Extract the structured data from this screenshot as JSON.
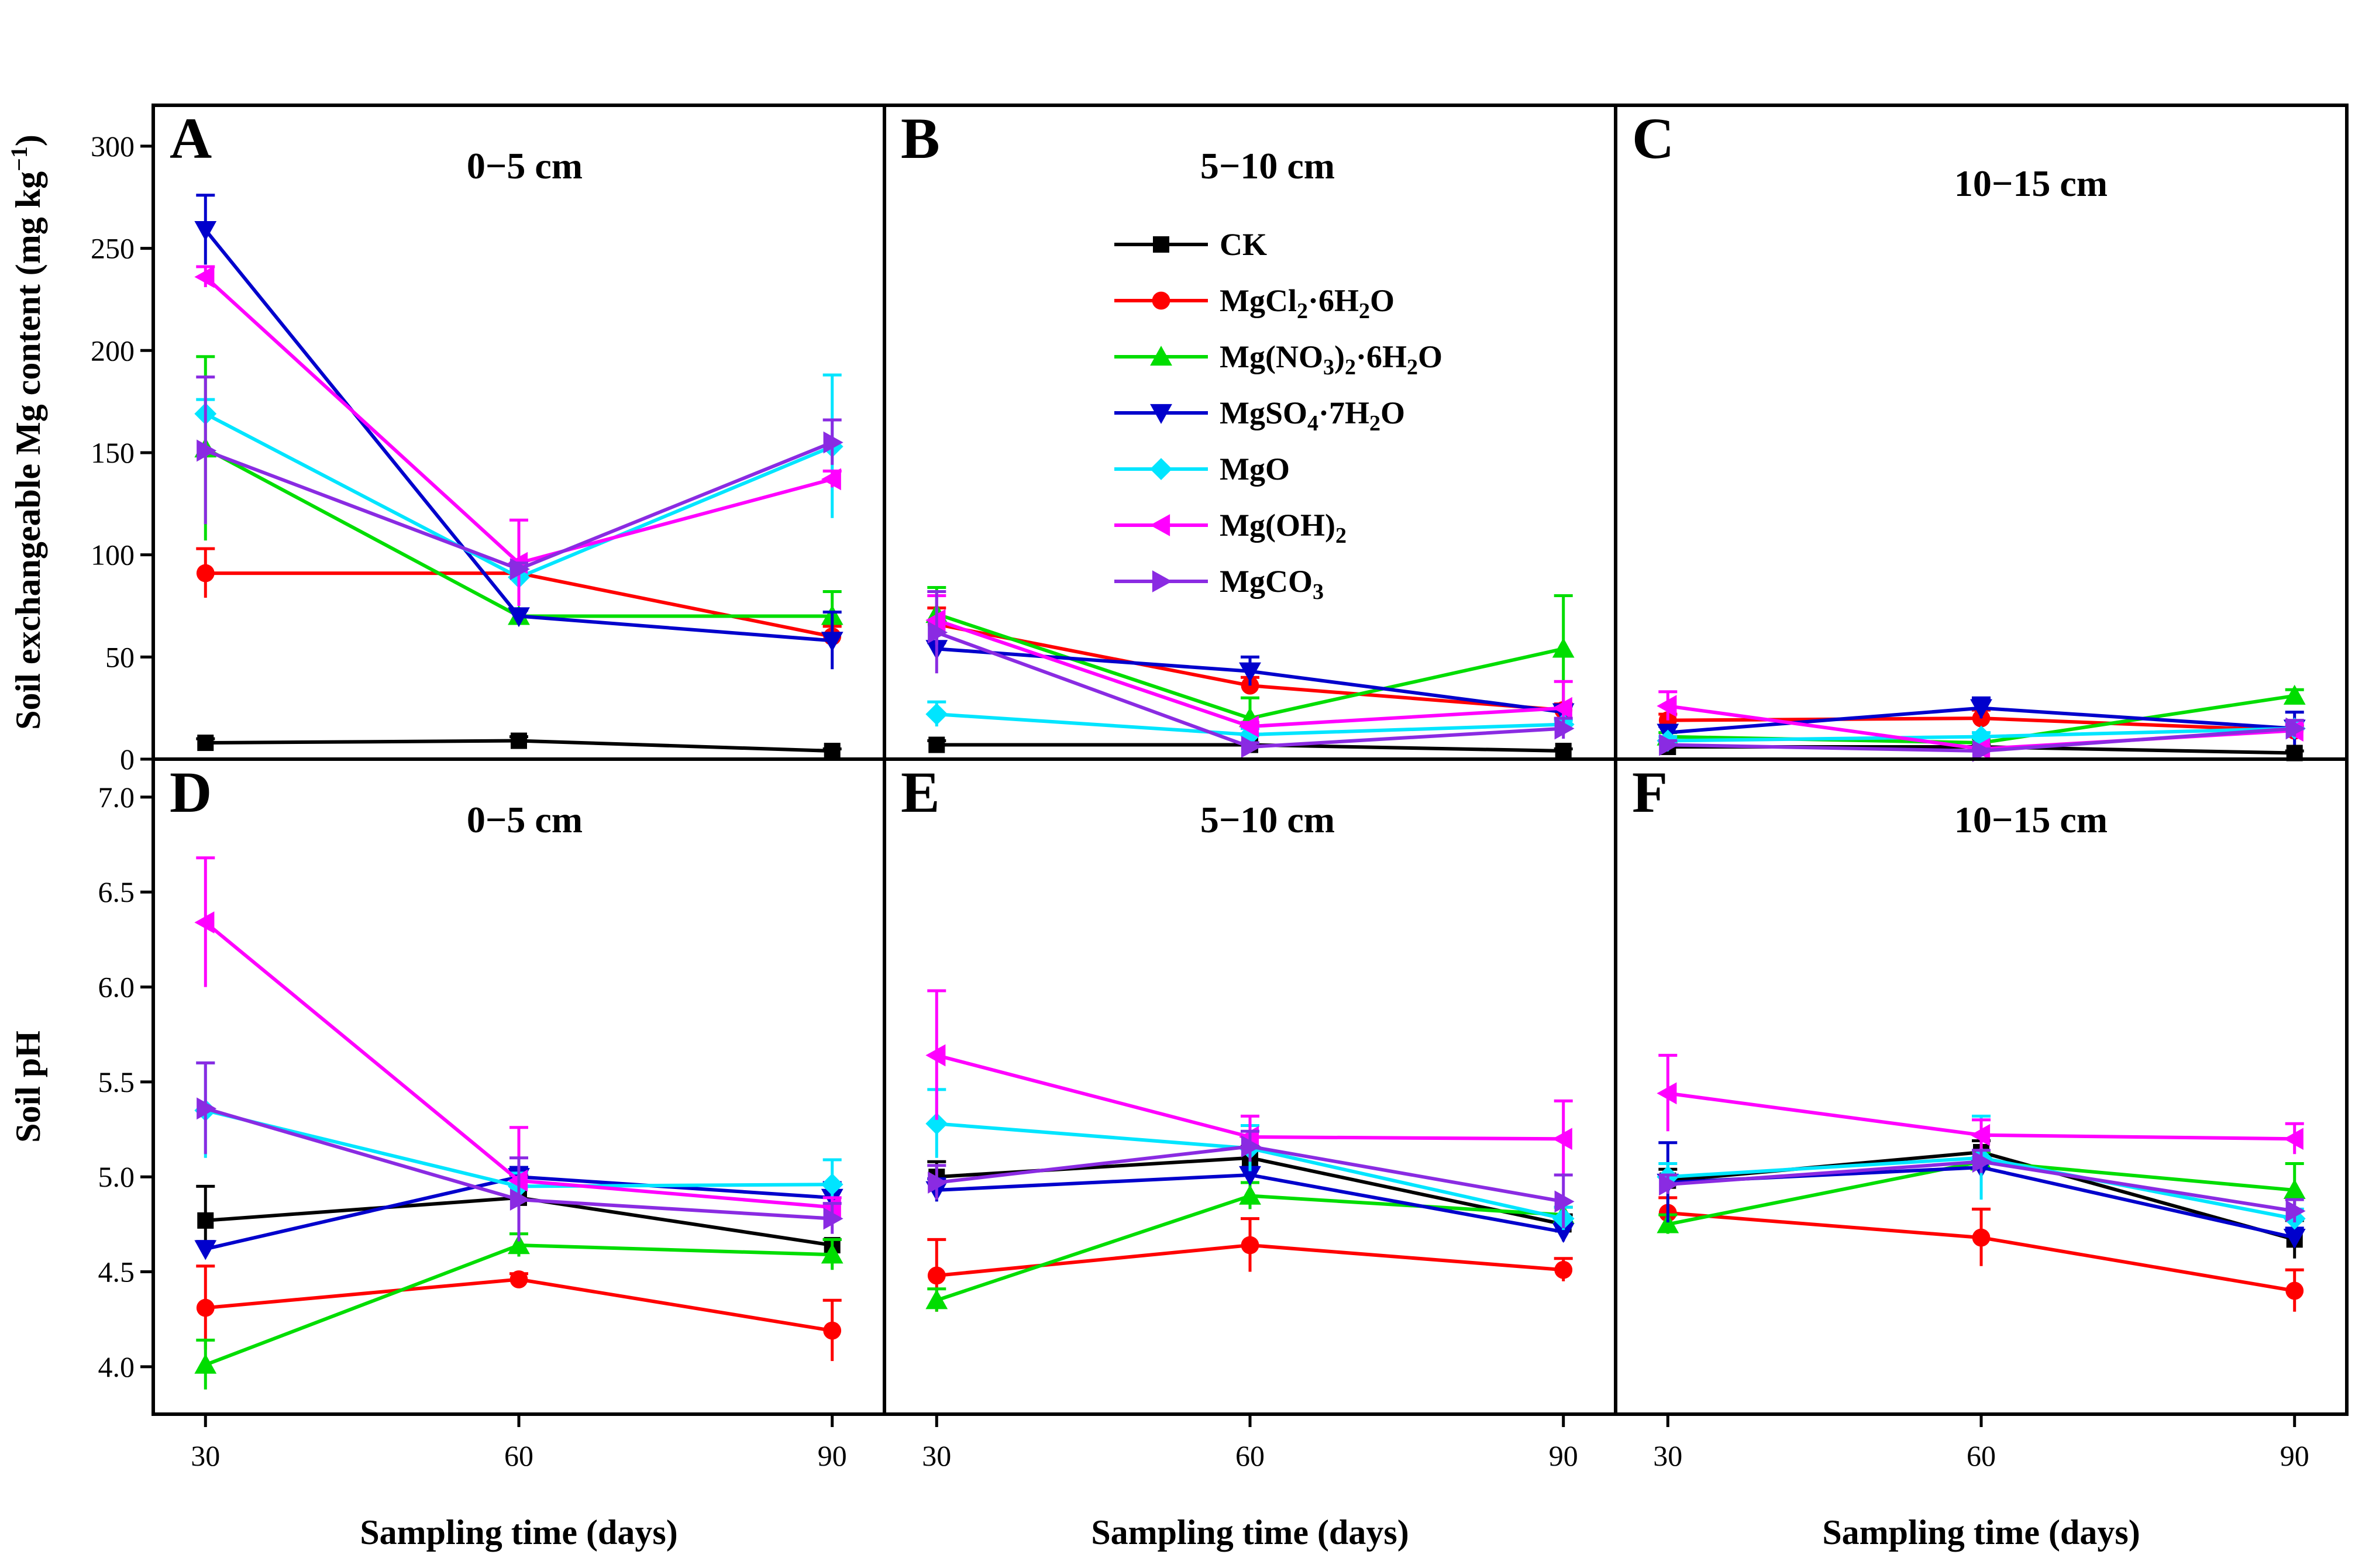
{
  "chart_data": {
    "type": "line",
    "x": [
      30,
      60,
      90
    ],
    "xlabel": "Sampling time (days)",
    "series_styles": [
      {
        "name": "CK",
        "color": "#000000",
        "marker": "square"
      },
      {
        "name": "MgCl2·6H2O",
        "color": "#ff0000",
        "marker": "circle"
      },
      {
        "name": "Mg(NO3)2·6H2O",
        "color": "#00dd00",
        "marker": "triangle-up"
      },
      {
        "name": "MgSO4·7H2O",
        "color": "#0000cc",
        "marker": "triangle-down"
      },
      {
        "name": "MgO",
        "color": "#00e5ff",
        "marker": "diamond"
      },
      {
        "name": "Mg(OH)2",
        "color": "#ff00ff",
        "marker": "triangle-left"
      },
      {
        "name": "MgCO3",
        "color": "#8a2be2",
        "marker": "triangle-right"
      }
    ],
    "legend": {
      "position": "panel-B",
      "entries": [
        {
          "base": "CK",
          "parts": []
        },
        {
          "base": "MgCl",
          "parts": [
            [
              "2",
              "sub"
            ],
            [
              "·6H",
              ""
            ],
            [
              "2",
              "sub"
            ],
            [
              "O",
              ""
            ]
          ]
        },
        {
          "base": "Mg(NO",
          "parts": [
            [
              "3",
              "sub"
            ],
            [
              ")",
              ""
            ],
            [
              "2",
              "sub"
            ],
            [
              "·6H",
              ""
            ],
            [
              "2",
              "sub"
            ],
            [
              "O",
              ""
            ]
          ]
        },
        {
          "base": "MgSO",
          "parts": [
            [
              "4",
              "sub"
            ],
            [
              "·7H",
              ""
            ],
            [
              "2",
              "sub"
            ],
            [
              "O",
              ""
            ]
          ]
        },
        {
          "base": "MgO",
          "parts": []
        },
        {
          "base": "Mg(OH)",
          "parts": [
            [
              "2",
              "sub"
            ]
          ]
        },
        {
          "base": "MgCO",
          "parts": [
            [
              "3",
              "sub"
            ]
          ]
        }
      ]
    },
    "rows": [
      {
        "ylabel": "Soil exchangeable Mg content (mg kg",
        "ylabel_sup": "−1",
        "ylabel_tail": ")",
        "ylim": [
          0,
          320
        ],
        "yticks": [
          0,
          50,
          100,
          150,
          200,
          250,
          300
        ],
        "ytick_labels": [
          "0",
          "50",
          "100",
          "150",
          "200",
          "250",
          "300"
        ],
        "panels": [
          {
            "label": "A",
            "title": "0−5 cm",
            "series": [
              {
                "name": "CK",
                "values": [
                  8,
                  9,
                  4
                ],
                "errors": [
                  2,
                  2,
                  1
                ]
              },
              {
                "name": "MgCl2·6H2O",
                "values": [
                  91,
                  91,
                  60
                ],
                "errors": [
                  12,
                  5,
                  5
                ]
              },
              {
                "name": "Mg(NO3)2·6H2O",
                "values": [
                  152,
                  70,
                  70
                ],
                "errors": [
                  45,
                  3,
                  12
                ]
              },
              {
                "name": "MgSO4·7H2O",
                "values": [
                  259,
                  70,
                  58
                ],
                "errors": [
                  17,
                  3,
                  14
                ]
              },
              {
                "name": "MgO",
                "values": [
                  169,
                  89,
                  153
                ],
                "errors": [
                  7,
                  4,
                  35
                ]
              },
              {
                "name": "Mg(OH)2",
                "values": [
                  236,
                  96,
                  137
                ],
                "errors": [
                  5,
                  21,
                  4
                ]
              },
              {
                "name": "MgCO3",
                "values": [
                  151,
                  93,
                  155
                ],
                "errors": [
                  36,
                  3,
                  11
                ]
              }
            ]
          },
          {
            "label": "B",
            "title": "5−10 cm",
            "series": [
              {
                "name": "CK",
                "values": [
                  7,
                  7,
                  4
                ],
                "errors": [
                  2,
                  1,
                  1
                ]
              },
              {
                "name": "MgCl2·6H2O",
                "values": [
                  66,
                  36,
                  24
                ],
                "errors": [
                  8,
                  4,
                  3
                ]
              },
              {
                "name": "Mg(NO3)2·6H2O",
                "values": [
                  71,
                  20,
                  54
                ],
                "errors": [
                  13,
                  10,
                  26
                ]
              },
              {
                "name": "MgSO4·7H2O",
                "values": [
                  54,
                  43,
                  23
                ],
                "errors": [
                  3,
                  7,
                  3
                ]
              },
              {
                "name": "MgO",
                "values": [
                  22,
                  12,
                  17
                ],
                "errors": [
                  6,
                  3,
                  2
                ]
              },
              {
                "name": "Mg(OH)2",
                "values": [
                  68,
                  16,
                  25
                ],
                "errors": [
                  12,
                  2,
                  13
                ]
              },
              {
                "name": "MgCO3",
                "values": [
                  62,
                  6,
                  15
                ],
                "errors": [
                  20,
                  2,
                  5
                ]
              }
            ]
          },
          {
            "label": "C",
            "title": "10−15 cm",
            "series": [
              {
                "name": "CK",
                "values": [
                  6,
                  6,
                  3
                ],
                "errors": [
                  2,
                  1,
                  1
                ]
              },
              {
                "name": "MgCl2·6H2O",
                "values": [
                  19,
                  20,
                  14
                ],
                "errors": [
                  3,
                  4,
                  2
                ]
              },
              {
                "name": "Mg(NO3)2·6H2O",
                "values": [
                  11,
                  8,
                  31
                ],
                "errors": [
                  2,
                  2,
                  3
                ]
              },
              {
                "name": "MgSO4·7H2O",
                "values": [
                  13,
                  25,
                  15
                ],
                "errors": [
                  3,
                  5,
                  8
                ]
              },
              {
                "name": "MgO",
                "values": [
                  9,
                  11,
                  15
                ],
                "errors": [
                  2,
                  2,
                  3
                ]
              },
              {
                "name": "Mg(OH)2",
                "values": [
                  26,
                  5,
                  14
                ],
                "errors": [
                  7,
                  1,
                  3
                ]
              },
              {
                "name": "MgCO3",
                "values": [
                  7,
                  4,
                  15
                ],
                "errors": [
                  2,
                  1,
                  4
                ]
              }
            ]
          }
        ]
      },
      {
        "ylabel": "Soil pH",
        "ylabel_sup": "",
        "ylabel_tail": "",
        "ylim": [
          3.75,
          7.2
        ],
        "yticks": [
          4.0,
          4.5,
          5.0,
          5.5,
          6.0,
          6.5,
          7.0
        ],
        "ytick_labels": [
          "4.0",
          "4.5",
          "5.0",
          "5.5",
          "6.0",
          "6.5",
          "7.0"
        ],
        "panels": [
          {
            "label": "D",
            "title": "0−5 cm",
            "series": [
              {
                "name": "CK",
                "values": [
                  4.77,
                  4.89,
                  4.64
                ],
                "errors": [
                  0.18,
                  0.12,
                  0.03
                ]
              },
              {
                "name": "MgCl2·6H2O",
                "values": [
                  4.31,
                  4.46,
                  4.19
                ],
                "errors": [
                  0.22,
                  0.03,
                  0.16
                ]
              },
              {
                "name": "Mg(NO3)2·6H2O",
                "values": [
                  4.01,
                  4.64,
                  4.59
                ],
                "errors": [
                  0.13,
                  0.06,
                  0.08
                ]
              },
              {
                "name": "MgSO4·7H2O",
                "values": [
                  4.62,
                  5.0,
                  4.89
                ],
                "errors": [
                  0.04,
                  0.05,
                  0.08
                ]
              },
              {
                "name": "MgO",
                "values": [
                  5.35,
                  4.95,
                  4.96
                ],
                "errors": [
                  0.25,
                  0.07,
                  0.13
                ]
              },
              {
                "name": "Mg(OH)2",
                "values": [
                  6.34,
                  4.98,
                  4.84
                ],
                "errors": [
                  0.34,
                  0.28,
                  0.05
                ]
              },
              {
                "name": "MgCO3",
                "values": [
                  5.36,
                  4.88,
                  4.78
                ],
                "errors": [
                  0.24,
                  0.22,
                  0.08
                ]
              }
            ]
          },
          {
            "label": "E",
            "title": "5−10 cm",
            "series": [
              {
                "name": "CK",
                "values": [
                  5.0,
                  5.1,
                  4.75
                ],
                "errors": [
                  0.08,
                  0.06,
                  0.05
                ]
              },
              {
                "name": "MgCl2·6H2O",
                "values": [
                  4.48,
                  4.64,
                  4.51
                ],
                "errors": [
                  0.19,
                  0.14,
                  0.06
                ]
              },
              {
                "name": "Mg(NO3)2·6H2O",
                "values": [
                  4.35,
                  4.9,
                  4.8
                ],
                "errors": [
                  0.06,
                  0.07,
                  0.04
                ]
              },
              {
                "name": "MgSO4·7H2O",
                "values": [
                  4.93,
                  5.01,
                  4.71
                ],
                "errors": [
                  0.06,
                  0.04,
                  0.05
                ]
              },
              {
                "name": "MgO",
                "values": [
                  5.28,
                  5.15,
                  4.78
                ],
                "errors": [
                  0.18,
                  0.12,
                  0.06
                ]
              },
              {
                "name": "Mg(OH)2",
                "values": [
                  5.64,
                  5.21,
                  5.2
                ],
                "errors": [
                  0.34,
                  0.11,
                  0.2
                ]
              },
              {
                "name": "MgCO3",
                "values": [
                  4.97,
                  5.16,
                  4.87
                ],
                "errors": [
                  0.09,
                  0.08,
                  0.14
                ]
              }
            ]
          },
          {
            "label": "F",
            "title": "10−15 cm",
            "series": [
              {
                "name": "CK",
                "values": [
                  4.98,
                  5.13,
                  4.67
                ],
                "errors": [
                  0.06,
                  0.06,
                  0.1
                ]
              },
              {
                "name": "MgCl2·6H2O",
                "values": [
                  4.81,
                  4.68,
                  4.4
                ],
                "errors": [
                  0.08,
                  0.15,
                  0.11
                ]
              },
              {
                "name": "Mg(NO3)2·6H2O",
                "values": [
                  4.75,
                  5.08,
                  4.93
                ],
                "errors": [
                  0.05,
                  0.05,
                  0.14
                ]
              },
              {
                "name": "MgSO4·7H2O",
                "values": [
                  4.97,
                  5.05,
                  4.68
                ],
                "errors": [
                  0.21,
                  0.03,
                  0.05
                ]
              },
              {
                "name": "MgO",
                "values": [
                  5.0,
                  5.1,
                  4.78
                ],
                "errors": [
                  0.07,
                  0.22,
                  0.05
                ]
              },
              {
                "name": "Mg(OH)2",
                "values": [
                  5.44,
                  5.22,
                  5.2
                ],
                "errors": [
                  0.2,
                  0.08,
                  0.08
                ]
              },
              {
                "name": "MgCO3",
                "values": [
                  4.96,
                  5.08,
                  4.82
                ],
                "errors": [
                  0.05,
                  0.06,
                  0.06
                ]
              }
            ]
          }
        ]
      }
    ]
  }
}
